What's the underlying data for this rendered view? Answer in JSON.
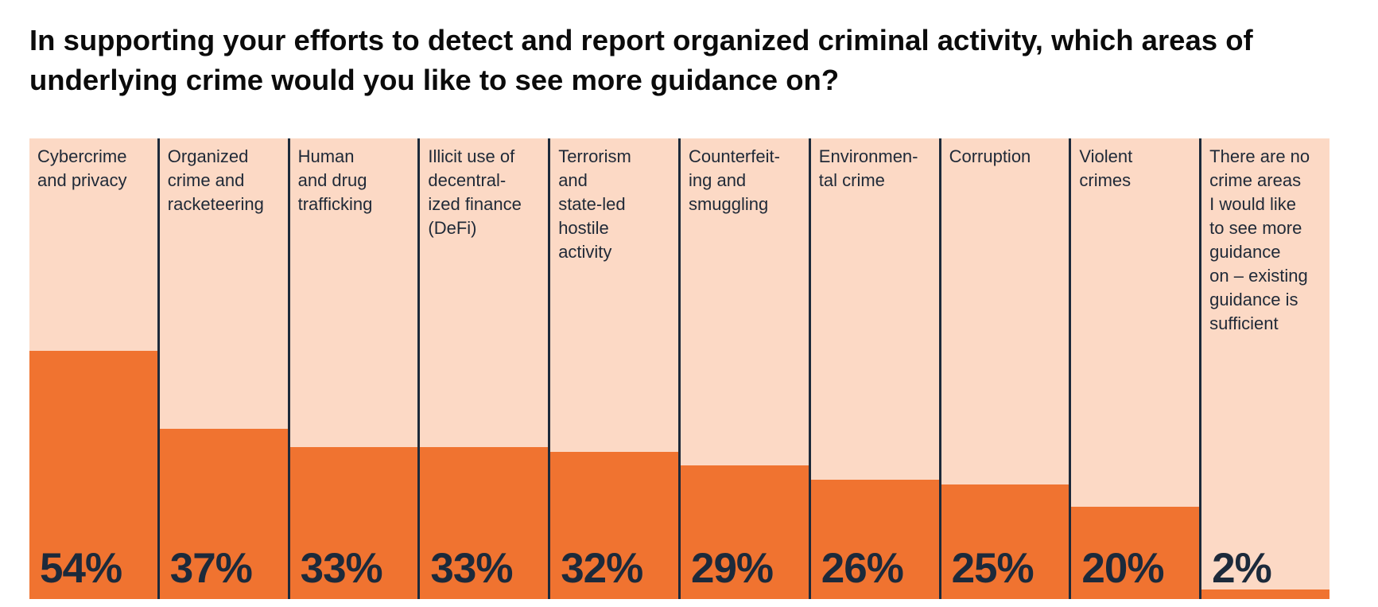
{
  "title": "In supporting your efforts to detect and report organized criminal activity, which areas of underlying crime would you like to see more guidance on?",
  "colors": {
    "bar": "#f07330",
    "background": "#fcd9c5",
    "divider": "#1c2a3b",
    "text": "#1c2a3b"
  },
  "chart_data": {
    "type": "bar",
    "title": "In supporting your efforts to detect and report organized criminal activity, which areas of underlying crime would you like to see more guidance on?",
    "xlabel": "",
    "ylabel": "",
    "ylim": [
      0,
      100
    ],
    "unit": "%",
    "grid": false,
    "legend": "none",
    "categories": [
      "Cybercrime and privacy",
      "Organized crime and racketeering",
      "Human and drug trafficking",
      "Illicit use of decentralized finance (DeFi)",
      "Terrorism and state-led hostile activity",
      "Counterfeiting and smuggling",
      "Environmental crime",
      "Corruption",
      "Violent crimes",
      "There are no crime areas I would like to see more guidance on – existing guidance is sufficient"
    ],
    "category_display": [
      "Cybercrime\nand privacy",
      "Organized\ncrime and\nracketeering",
      "Human\nand drug\ntrafficking",
      "Illicit use of\ndecentral-\nized finance\n(DeFi)",
      "Terrorism\nand\nstate-led\nhostile\nactivity",
      "Counterfeit-\ning and\nsmuggling",
      "Environmen-\ntal crime",
      "Corruption",
      "Violent\ncrimes",
      "There are no\ncrime areas\nI would like\nto see more\nguidance\non – existing\nguidance is\nsufficient"
    ],
    "values": [
      54,
      37,
      33,
      33,
      32,
      29,
      26,
      25,
      20,
      2
    ],
    "labels": [
      "54%",
      "37%",
      "33%",
      "33%",
      "32%",
      "29%",
      "26%",
      "25%",
      "20%",
      "2%"
    ]
  }
}
